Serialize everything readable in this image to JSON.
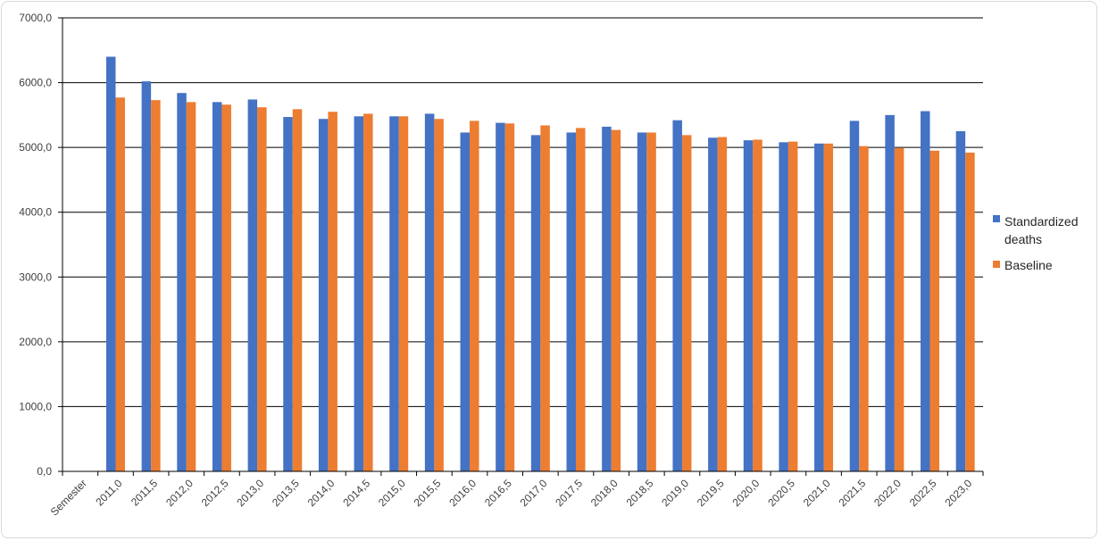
{
  "chart_data": {
    "type": "bar",
    "categories": [
      "Semester",
      "2011,0",
      "2011,5",
      "2012,0",
      "2012,5",
      "2013,0",
      "2013,5",
      "2014,0",
      "2014,5",
      "2015,0",
      "2015,5",
      "2016,0",
      "2016,5",
      "2017,0",
      "2017,5",
      "2018,0",
      "2018,5",
      "2019,0",
      "2019,5",
      "2020,0",
      "2020,5",
      "2021,0",
      "2021,5",
      "2022,0",
      "2022,5",
      "2023,0"
    ],
    "series": [
      {
        "name": "Standardized deaths",
        "color": "#4472c4",
        "values": [
          null,
          6400,
          6020,
          5840,
          5700,
          5740,
          5470,
          5440,
          5480,
          5480,
          5520,
          5230,
          5380,
          5190,
          5230,
          5320,
          5230,
          5420,
          5150,
          5110,
          5080,
          5060,
          5410,
          5500,
          5560,
          5250
        ]
      },
      {
        "name": "Baseline",
        "color": "#ed7d31",
        "values": [
          null,
          5770,
          5730,
          5700,
          5660,
          5620,
          5590,
          5550,
          5520,
          5480,
          5440,
          5410,
          5370,
          5340,
          5300,
          5270,
          5230,
          5190,
          5160,
          5120,
          5090,
          5060,
          5020,
          4990,
          4950,
          4920
        ]
      }
    ],
    "ylim": [
      0,
      7000
    ],
    "yticks": [
      "0,0",
      "1000,0",
      "2000,0",
      "3000,0",
      "4000,0",
      "5000,0",
      "6000,0",
      "7000,0"
    ],
    "ytick_values": [
      0,
      1000,
      2000,
      3000,
      4000,
      5000,
      6000,
      7000
    ],
    "grid": true,
    "legend_position": "right",
    "title": "",
    "xlabel": "",
    "ylabel": ""
  },
  "legend": {
    "series1_line1": "Standardized",
    "series1_line2": "deaths",
    "series2": "Baseline"
  }
}
